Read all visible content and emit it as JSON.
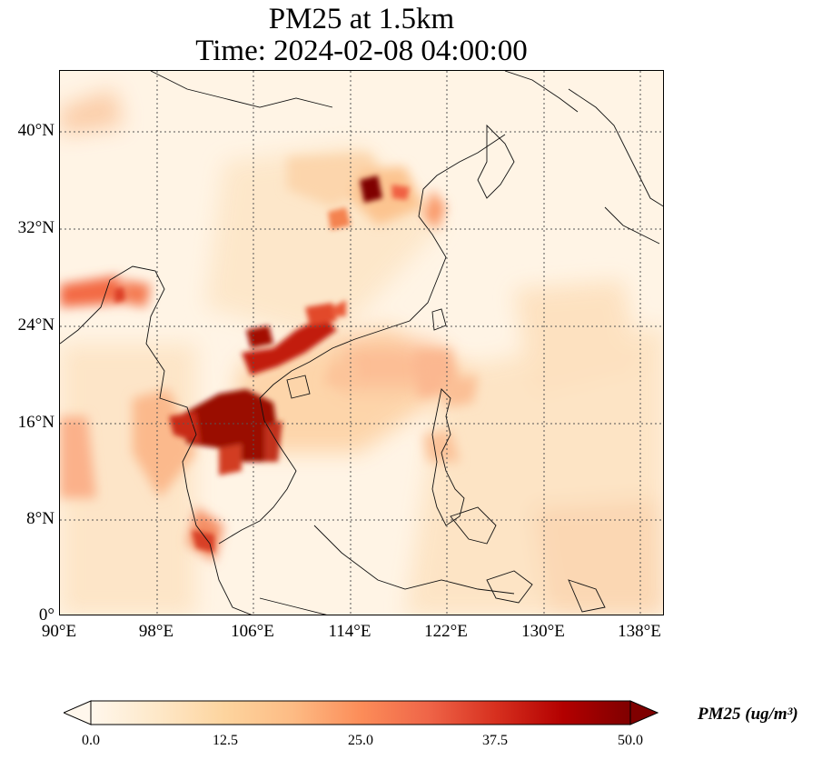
{
  "title": {
    "line1": "PM25 at 1.5km",
    "line2": "Time: 2024-02-08 04:00:00"
  },
  "map": {
    "extent": {
      "lon_min": 90,
      "lon_max": 140,
      "lat_min": 0,
      "lat_max": 45
    },
    "lat_ticks": [
      "40°N",
      "32°N",
      "24°N",
      "16°N",
      "8°N",
      "0°"
    ],
    "lon_ticks": [
      "90°E",
      "98°E",
      "106°E",
      "114°E",
      "122°E",
      "130°E",
      "138°E"
    ],
    "gridlines": "dotted",
    "field": "PM25 concentration",
    "hotspots": [
      {
        "region": "Northern Vietnam / Guangxi",
        "level": "high"
      },
      {
        "region": "Thailand / Laos / Cambodia",
        "level": "high"
      },
      {
        "region": "North China Plain",
        "level": "high"
      },
      {
        "region": "Northeast India / Myanmar",
        "level": "moderate-high"
      },
      {
        "region": "Southern Thailand",
        "level": "moderate"
      }
    ]
  },
  "colorbar": {
    "label": "PM25 (ug/m³)",
    "colormap": "OrRd",
    "min": 0.0,
    "max": 50.0,
    "ticks": [
      "0.0",
      "12.5",
      "25.0",
      "37.5",
      "50.0"
    ],
    "extend": "both",
    "colors": [
      "#fff7ec",
      "#fee8c8",
      "#fdd49e",
      "#fdbb84",
      "#fc8d59",
      "#ef6548",
      "#d7301f",
      "#b30000",
      "#7f0000"
    ]
  }
}
